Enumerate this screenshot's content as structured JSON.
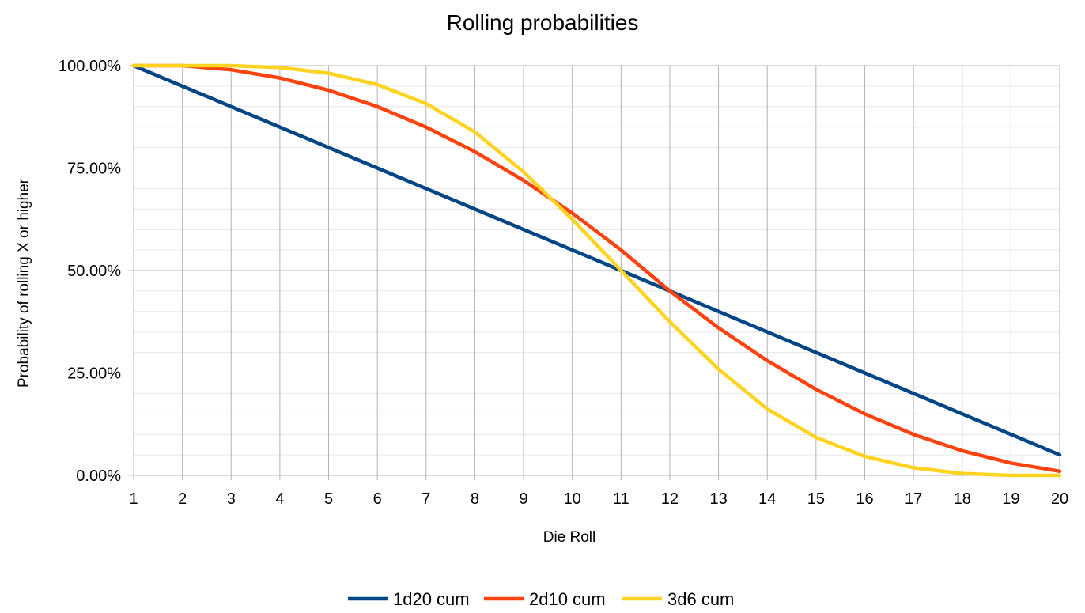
{
  "chart_data": {
    "type": "line",
    "title": "Rolling probabilities",
    "xlabel": "Die Roll",
    "ylabel": "Probability of rolling X or higher",
    "x": [
      1,
      2,
      3,
      4,
      5,
      6,
      7,
      8,
      9,
      10,
      11,
      12,
      13,
      14,
      15,
      16,
      17,
      18,
      19,
      20
    ],
    "ylim": [
      0,
      1
    ],
    "yticks": [
      0,
      0.25,
      0.5,
      0.75,
      1.0
    ],
    "ytick_labels": [
      "0.00%",
      "25.00%",
      "50.00%",
      "75.00%",
      "100.00%"
    ],
    "grid": true,
    "legend_position": "bottom",
    "series": [
      {
        "name": "1d20 cum",
        "color": "#004586",
        "values": [
          1.0,
          0.95,
          0.9,
          0.85,
          0.8,
          0.75,
          0.7,
          0.65,
          0.6,
          0.55,
          0.5,
          0.45,
          0.4,
          0.35,
          0.3,
          0.25,
          0.2,
          0.15,
          0.1,
          0.05
        ]
      },
      {
        "name": "2d10 cum",
        "color": "#ff420e",
        "values": [
          1.0,
          1.0,
          0.99,
          0.97,
          0.94,
          0.9,
          0.85,
          0.79,
          0.72,
          0.64,
          0.55,
          0.45,
          0.36,
          0.28,
          0.21,
          0.15,
          0.1,
          0.06,
          0.03,
          0.01
        ]
      },
      {
        "name": "3d6 cum",
        "color": "#ffd320",
        "values": [
          1.0,
          1.0,
          1.0,
          0.9954,
          0.9815,
          0.9537,
          0.9074,
          0.838,
          0.7407,
          0.625,
          0.5,
          0.375,
          0.2593,
          0.162,
          0.0926,
          0.0463,
          0.0185,
          0.0046,
          0.0,
          0.0
        ]
      }
    ]
  }
}
